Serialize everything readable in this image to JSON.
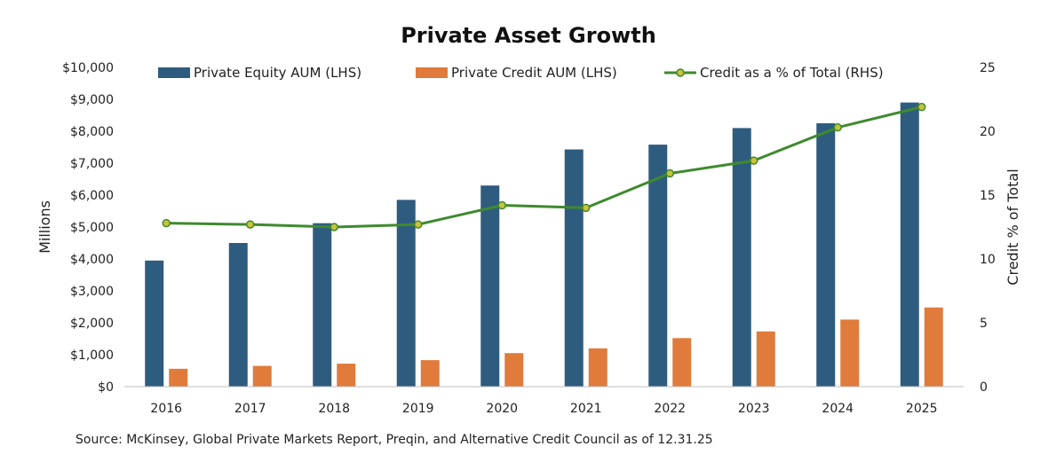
{
  "chart_data": {
    "type": "bar",
    "title": "Private Asset Growth",
    "categories": [
      "2016",
      "2017",
      "2018",
      "2019",
      "2020",
      "2021",
      "2022",
      "2023",
      "2024",
      "2025"
    ],
    "series": [
      {
        "name": "Private Equity AUM (LHS)",
        "axis": "left",
        "type": "bar",
        "color": "#2e5c7e",
        "values": [
          3950,
          4500,
          5120,
          5850,
          6300,
          7430,
          7580,
          8100,
          8250,
          8900
        ]
      },
      {
        "name": "Private Credit AUM (LHS)",
        "axis": "left",
        "type": "bar",
        "color": "#e07b3c",
        "values": [
          560,
          650,
          720,
          830,
          1050,
          1200,
          1520,
          1730,
          2100,
          2480
        ]
      },
      {
        "name": "Credit as a % of Total (RHS)",
        "axis": "right",
        "type": "line",
        "color": "#3e8a2e",
        "marker_color": "#c9c23a",
        "values": [
          12.8,
          12.7,
          12.5,
          12.7,
          14.2,
          14.0,
          16.7,
          17.7,
          20.3,
          21.9
        ]
      }
    ],
    "ylabel": "Millions",
    "ylim": [
      0,
      10000
    ],
    "yticks": [
      "$0",
      "$1,000",
      "$2,000",
      "$3,000",
      "$4,000",
      "$5,000",
      "$6,000",
      "$7,000",
      "$8,000",
      "$9,000",
      "$10,000"
    ],
    "y2label": "Credit % of Total",
    "y2lim": [
      0,
      25
    ],
    "y2ticks": [
      "0",
      "5",
      "10",
      "15",
      "20",
      "25"
    ],
    "legend_position": "top",
    "grid": false,
    "source": "Source: McKinsey, Global Private Markets Report, Preqin, and Alternative Credit Council as of 12.31.25"
  }
}
